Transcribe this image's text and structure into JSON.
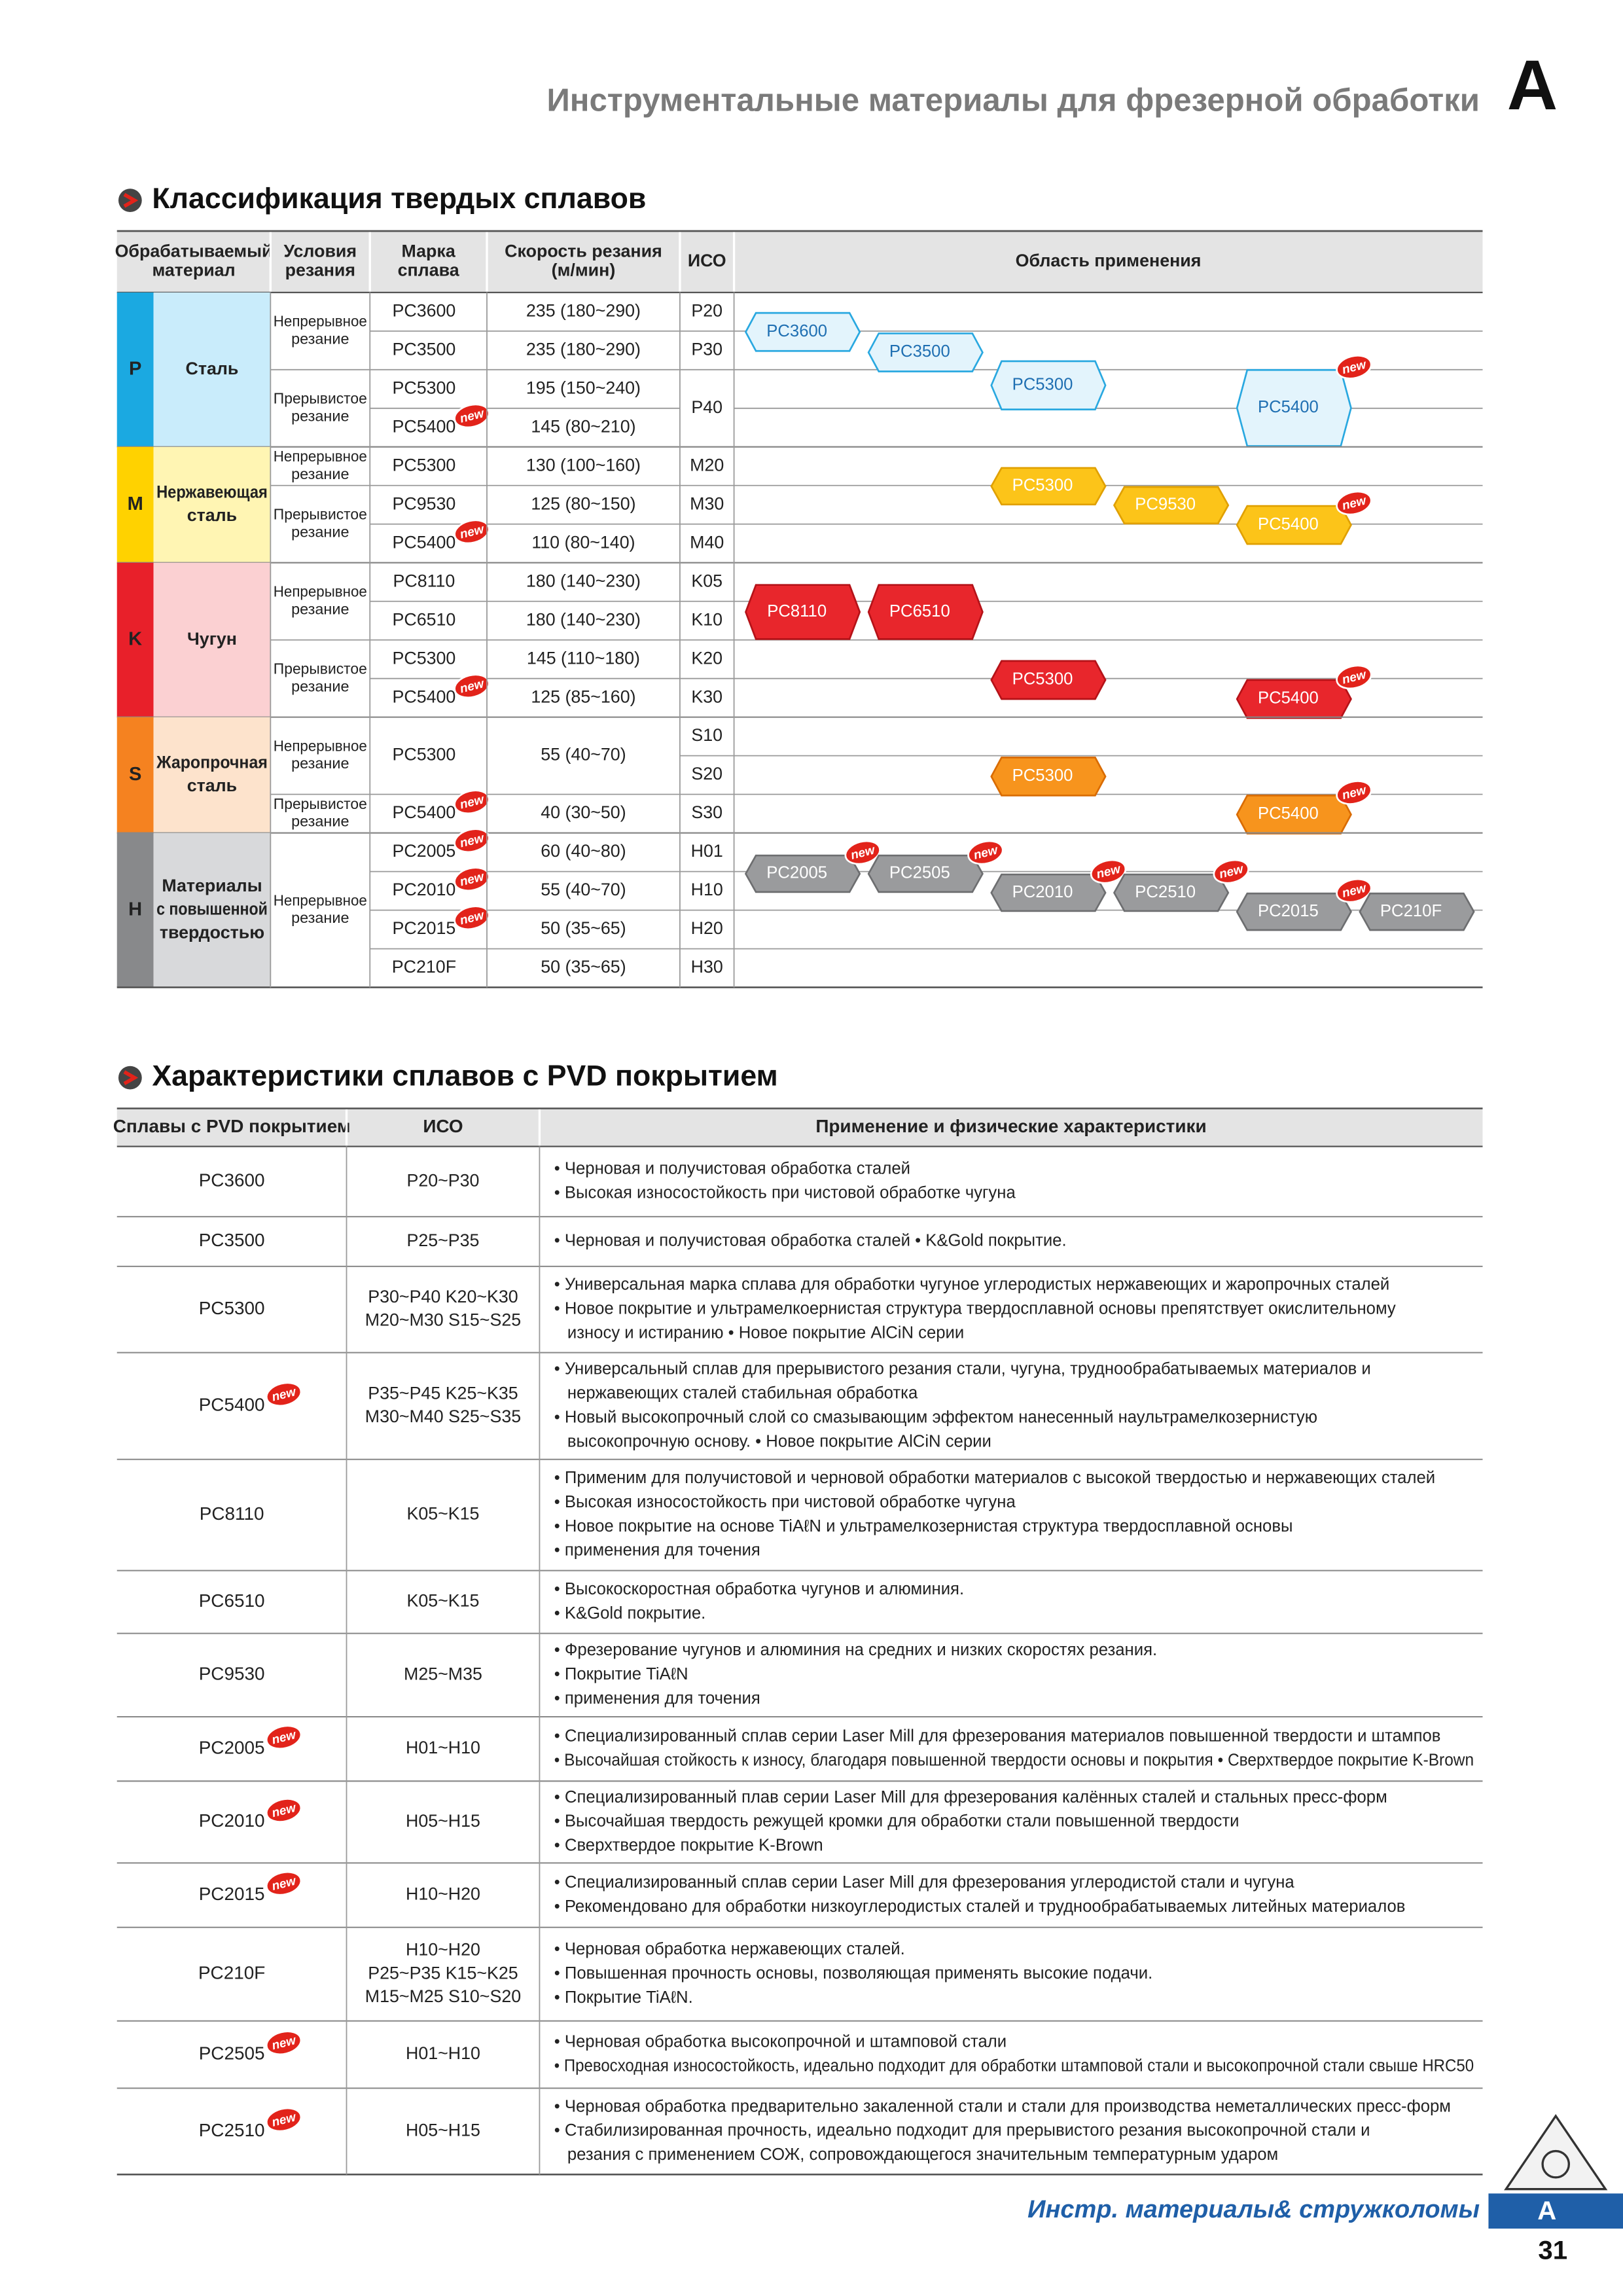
{
  "header": {
    "title": "Инструментальные материалы для фрезерной обработки",
    "letter": "A"
  },
  "badge": "new",
  "classification": {
    "title": "Классификация твердых сплавов",
    "columns": [
      [
        "Обрабатываемый",
        "материал"
      ],
      [
        "Условия",
        "резания"
      ],
      [
        "Марка",
        "сплава"
      ],
      [
        "Скорость резания",
        "(м/мин)"
      ],
      [
        "ИСО"
      ],
      [
        "Область применения"
      ]
    ],
    "groups": [
      {
        "letter": "P",
        "name": [
          "Сталь"
        ],
        "color": "#1ba9e1",
        "light": "#c9ecfb",
        "tag_fill": "#e3f4fc",
        "tag_stroke": "#29a8e0",
        "tag_text": "#1f6fb2",
        "rows": [
          {
            "condition": [
              "Непрерывное",
              "резание"
            ],
            "grade": "PC3600",
            "speed": "235 (180~290)",
            "iso": "P20"
          },
          {
            "condition": null,
            "grade": "PC3500",
            "speed": "235 (180~290)",
            "iso": "P30"
          },
          {
            "condition": [
              "Прерывистое",
              "резание"
            ],
            "grade": "PC5300",
            "speed": "195 (150~240)",
            "iso": "P40"
          },
          {
            "condition": null,
            "grade": "PC5400",
            "badge": "new",
            "speed": "145 (80~210)",
            "iso": null
          }
        ],
        "tags": [
          {
            "label": "PC3600"
          },
          {
            "label": "PC3500"
          },
          {
            "label": "PC5300"
          },
          {
            "label": "PC5400",
            "badge": "new"
          }
        ]
      },
      {
        "letter": "M",
        "name": [
          "Нержавеющая",
          "сталь"
        ],
        "color": "#ffd200",
        "light": "#fff5b3",
        "tag_fill": "#fcc419",
        "tag_stroke": "#e0a000",
        "tag_text": "#ffffff",
        "rows": [
          {
            "condition": [
              "Непрерывное",
              "резание"
            ],
            "grade": "PC5300",
            "speed": "130 (100~160)",
            "iso": "M20"
          },
          {
            "condition": [
              "Прерывистое",
              "резание"
            ],
            "grade": "PC9530",
            "speed": "125 (80~150)",
            "iso": "M30"
          },
          {
            "condition": null,
            "grade": "PC5400",
            "badge": "new",
            "speed": "110 (80~140)",
            "iso": "M40"
          }
        ],
        "tags": [
          {
            "label": "PC5300"
          },
          {
            "label": "PC9530"
          },
          {
            "label": "PC5400",
            "badge": "new"
          }
        ]
      },
      {
        "letter": "K",
        "name": [
          "Чугун"
        ],
        "color": "#e8202a",
        "light": "#fbd0d2",
        "tag_fill": "#e8262c",
        "tag_stroke": "#b51218",
        "tag_text": "#ffffff",
        "rows": [
          {
            "condition": [
              "Непрерывное",
              "резание"
            ],
            "grade": "PC8110",
            "speed": "180 (140~230)",
            "iso": "K05"
          },
          {
            "condition": null,
            "grade": "PC6510",
            "speed": "180 (140~230)",
            "iso": "K10"
          },
          {
            "condition": [
              "Прерывистое",
              "резание"
            ],
            "grade": "PC5300",
            "speed": "145 (110~180)",
            "iso": "K20"
          },
          {
            "condition": null,
            "grade": "PC5400",
            "badge": "new",
            "speed": "125 (85~160)",
            "iso": "K30"
          }
        ],
        "tags": [
          {
            "label": "PC8110"
          },
          {
            "label": "PC6510"
          },
          {
            "label": "PC5300"
          },
          {
            "label": "PC5400",
            "badge": "new"
          }
        ]
      },
      {
        "letter": "S",
        "name": [
          "Жаропрочная",
          "сталь"
        ],
        "color": "#f58220",
        "light": "#fde3cc",
        "tag_fill": "#f7941d",
        "tag_stroke": "#d96b00",
        "tag_text": "#ffffff",
        "rows": [
          {
            "condition": [
              "Непрерывное",
              "резание"
            ],
            "grade": "PC5300",
            "speed": "55 (40~70)",
            "iso": "S10"
          },
          {
            "condition": null,
            "grade": null,
            "speed": null,
            "iso": "S20"
          },
          {
            "condition": [
              "Прерывистое",
              "резание"
            ],
            "grade": "PC5400",
            "badge": "new",
            "speed": "40 (30~50)",
            "iso": "S30"
          }
        ],
        "tags": [
          {
            "label": "PC5300"
          },
          {
            "label": "PC5400",
            "badge": "new"
          }
        ]
      },
      {
        "letter": "H",
        "name": [
          "Материалы",
          "с повышенной",
          "твердостью"
        ],
        "color": "#88898b",
        "light": "#d8d9db",
        "tag_fill": "#9a9b9d",
        "tag_stroke": "#6d6e70",
        "tag_text": "#ffffff",
        "rows": [
          {
            "condition": [
              "Непрерывное",
              "резание"
            ],
            "grade": "PC2005",
            "badge": "new",
            "speed": "60 (40~80)",
            "iso": "H01"
          },
          {
            "condition": null,
            "grade": "PC2010",
            "badge": "new",
            "speed": "55 (40~70)",
            "iso": "H10"
          },
          {
            "condition": null,
            "grade": "PC2015",
            "badge": "new",
            "speed": "50 (35~65)",
            "iso": "H20"
          },
          {
            "condition": null,
            "grade": "PC210F",
            "speed": "50 (35~65)",
            "iso": "H30"
          }
        ],
        "tags": [
          {
            "label": "PC2005",
            "badge": "new"
          },
          {
            "label": "PC2505",
            "badge": "new"
          },
          {
            "label": "PC2010",
            "badge": "new"
          },
          {
            "label": "PC2510",
            "badge": "new"
          },
          {
            "label": "PC2015",
            "badge": "new"
          },
          {
            "label": "PC210F"
          }
        ]
      }
    ]
  },
  "pvd": {
    "title": "Характеристики сплавов с PVD покрытием",
    "columns": [
      "Сплавы с PVD покрытием",
      "ИСО",
      "Применение и физические характеристики"
    ],
    "rows": [
      {
        "grade": "PC3600",
        "iso": [
          "P20~P30"
        ],
        "lines": [
          "• Черновая и получистовая обработка сталей",
          "• Высокая износостойкость при чистовой обработке чугуна"
        ]
      },
      {
        "grade": "PC3500",
        "iso": [
          "P25~P35"
        ],
        "lines": [
          "• Черновая и получистовая обработка сталей    • K&Gold покрытие."
        ]
      },
      {
        "grade": "PC5300",
        "iso": [
          "P30~P40   K20~K30",
          "M20~M30   S15~S25"
        ],
        "lines": [
          "• Универсальная марка сплава для обработки чугуное углеродистых нержавеющих и жаропрочных сталей",
          "• Новое покрытие и ультрамелкоернистая структура твердосплавной основы препятствует окислительному",
          "износу и истиранию    • Новое покрытие AlCiN серии"
        ]
      },
      {
        "grade": "PC5400",
        "badge": "new",
        "iso": [
          "P35~P45   K25~K35",
          "M30~M40   S25~S35"
        ],
        "lines": [
          "• Универсальный сплав для прерывистого резания стали, чугуна, труднообрабатываемых материалов и",
          "нержавеющих сталей стабильная обработка",
          "• Новый высокопрочный слой со смазывающим эффектом нанесенный наультрамелкозернистую",
          "высокопрочную основу.    • Новое покрытие AlCiN серии"
        ]
      },
      {
        "grade": "PC8110",
        "iso": [
          "K05~K15"
        ],
        "lines": [
          "• Применим для получистовой и черновой обработки материалов с высокой твердостью и нержавеющих сталей",
          "• Высокая износостойкость при чистовой обработке чугуна",
          "• Новое покрытие на основе TiAℓN и ультрамелкозернистая структура твердосплавной основы",
          "• применения для точения"
        ]
      },
      {
        "grade": "PC6510",
        "iso": [
          "K05~K15"
        ],
        "lines": [
          "• Высокоскоростная обработка чугунов и алюминия.",
          "• K&Gold покрытие."
        ]
      },
      {
        "grade": "PC9530",
        "iso": [
          "M25~M35"
        ],
        "lines": [
          "• Фрезерование чугунов и алюминия на средних и низких скоростях резания.",
          "• Покрытие TiAℓN",
          "• применения для точения"
        ]
      },
      {
        "grade": "PC2005",
        "badge": "new",
        "iso": [
          "H01~H10"
        ],
        "lines": [
          "• Специализированный сплав серии Laser Mill для фрезерования материалов повышенной твердости и штампов",
          "• Высочайшая стойкость к износу, благодаря повышенной твердости основы и покрытия  • Сверхтвердое покрытие K-Brown"
        ]
      },
      {
        "grade": "PC2010",
        "badge": "new",
        "iso": [
          "H05~H15"
        ],
        "lines": [
          "• Специализированный плав серии Laser Mill для фрезерования калённых сталей и стальных пресс-форм",
          "• Высочайшая твердость режущей кромки для обработки стали повышенной твердости",
          "• Сверхтвердое покрытие K-Brown"
        ]
      },
      {
        "grade": "PC2015",
        "badge": "new",
        "iso": [
          "H10~H20"
        ],
        "lines": [
          "• Специализированный сплав серии Laser Mill для фрезерования углеродистой стали и чугуна",
          "• Рекомендовано для обработки низкоуглеродистых сталей и труднообрабатываемых литейных материалов"
        ]
      },
      {
        "grade": "PC210F",
        "iso": [
          "H10~H20",
          "P25~P35   K15~K25",
          "M15~M25   S10~S20"
        ],
        "lines": [
          "• Черновая обработка нержавеющих сталей.",
          "• Повышенная прочность основы, позволяющая применять высокие подачи.",
          "• Покрытие TiAℓN."
        ]
      },
      {
        "grade": "PC2505",
        "badge": "new",
        "iso": [
          "H01~H10"
        ],
        "lines": [
          "• Черновая обработка высокопрочной и штамповой стали",
          "• Превосходная износостойкость, идеально подходит для обработки штамповой стали и высокопрочной стали свыше HRC50"
        ]
      },
      {
        "grade": "PC2510",
        "badge": "new",
        "iso": [
          "H05~H15"
        ],
        "lines": [
          "• Черновая обработка предварительно закаленной стали и стали для производства неметаллических пресс-форм",
          "• Стабилизированная прочность, идеально подходит для прерывистого резания высокопрочной стали и",
          "резания с применением СОЖ, сопровождающегося значительным температурным ударом"
        ]
      }
    ]
  },
  "footer": {
    "text": "Инстр. материалы& стружколомы",
    "letter": "A",
    "page": "31"
  }
}
